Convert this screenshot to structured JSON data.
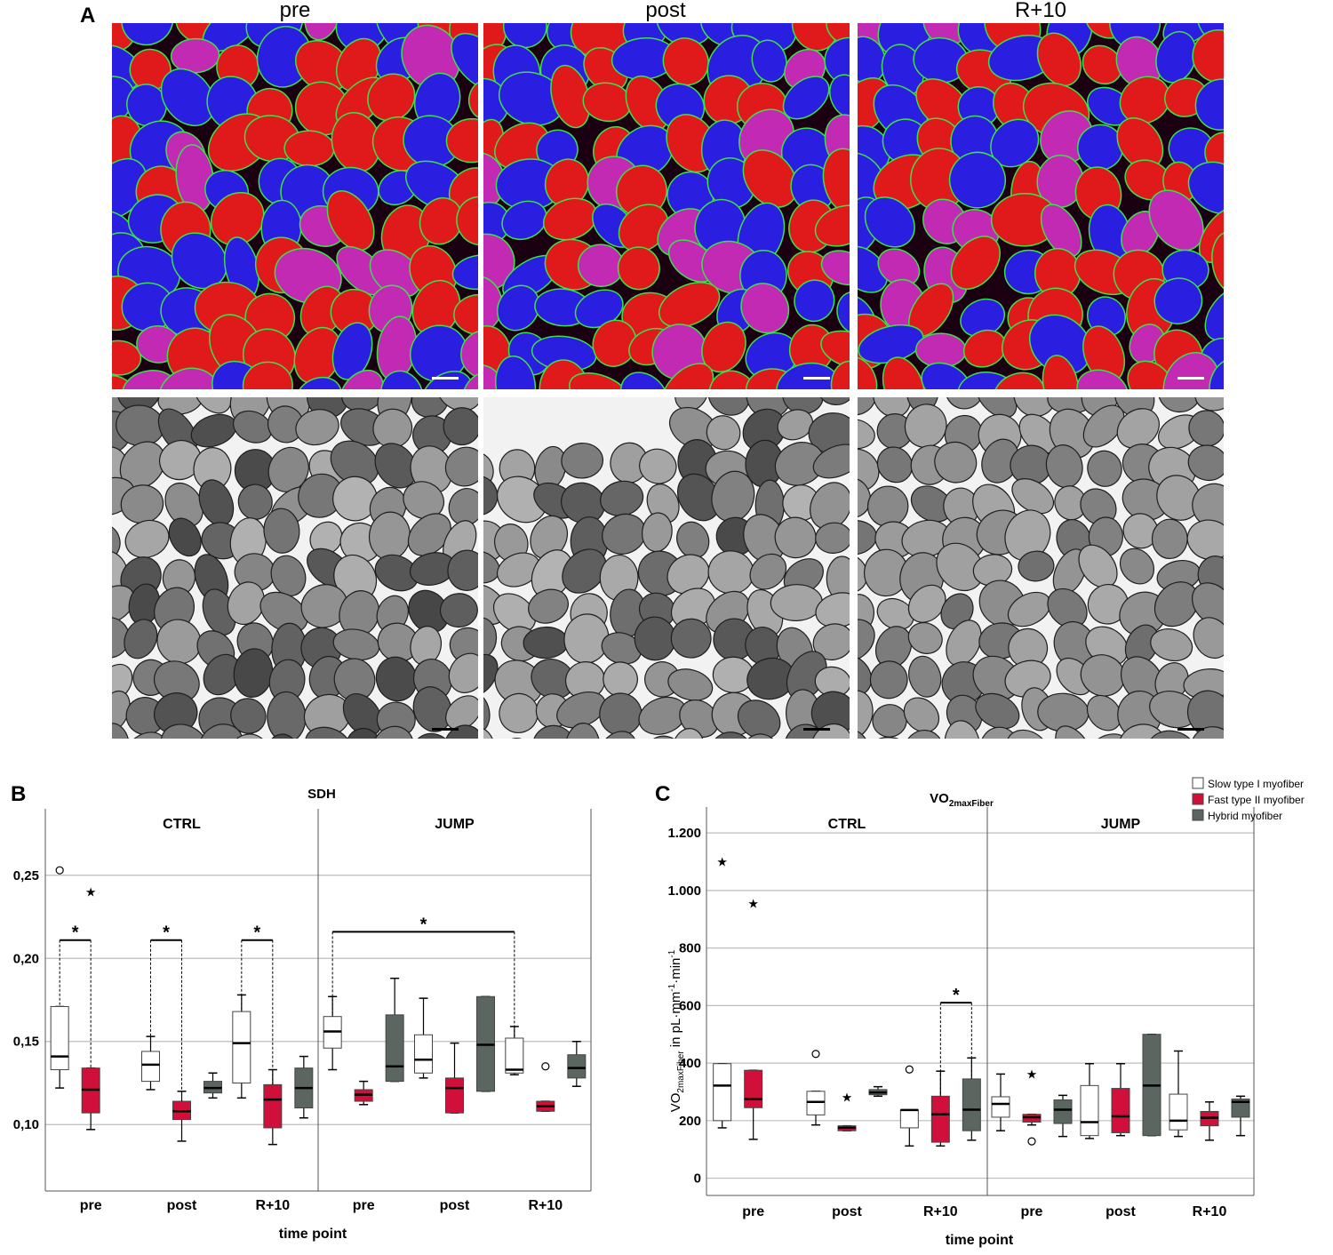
{
  "panel_labels": {
    "a": "A",
    "b": "B",
    "c": "C"
  },
  "micrograph_titles": [
    "pre",
    "post",
    "R+10"
  ],
  "micrographs": {
    "rows": [
      "immunofluorescence",
      "SDH stain"
    ],
    "fluor_colors": {
      "blue": "#2a1fe0",
      "red": "#e01a1a",
      "magenta": "#c22ab4",
      "green": "#3de04a",
      "bg": "#1a0010"
    }
  },
  "chart_data": [
    {
      "type": "box",
      "title": "SDH",
      "xlabel": "time point",
      "ylabel": "",
      "facets": [
        "CTRL",
        "JUMP"
      ],
      "categories": [
        "pre",
        "post",
        "R+10"
      ],
      "ylim": [
        0.06,
        0.29
      ],
      "yticks": [
        0.1,
        0.15,
        0.2,
        0.25
      ],
      "ytick_labels": [
        "0,10",
        "0,15",
        "0,20",
        "0,25"
      ],
      "grid": true,
      "series": [
        {
          "color": "#ffffff",
          "boxes": {
            "CTRL": [
              {
                "min": 0.122,
                "q1": 0.133,
                "median": 0.141,
                "q3": 0.171,
                "max": 0.171,
                "outliers": [
                  {
                    "v": 0.253,
                    "s": "circle"
                  }
                ]
              },
              {
                "min": 0.121,
                "q1": 0.126,
                "median": 0.136,
                "q3": 0.144,
                "max": 0.153,
                "outliers": []
              },
              {
                "min": 0.116,
                "q1": 0.125,
                "median": 0.149,
                "q3": 0.168,
                "max": 0.178,
                "outliers": []
              }
            ],
            "JUMP": [
              {
                "min": 0.133,
                "q1": 0.146,
                "median": 0.156,
                "q3": 0.165,
                "max": 0.177,
                "outliers": []
              },
              {
                "min": 0.128,
                "q1": 0.131,
                "median": 0.139,
                "q3": 0.154,
                "max": 0.176,
                "outliers": []
              },
              {
                "min": 0.13,
                "q1": 0.131,
                "median": 0.133,
                "q3": 0.152,
                "max": 0.159,
                "outliers": []
              }
            ]
          }
        },
        {
          "color": "#d0103a",
          "boxes": {
            "CTRL": [
              {
                "min": 0.097,
                "q1": 0.107,
                "median": 0.121,
                "q3": 0.134,
                "max": 0.134,
                "outliers": [
                  {
                    "v": 0.24,
                    "s": "star"
                  }
                ]
              },
              {
                "min": 0.09,
                "q1": 0.103,
                "median": 0.108,
                "q3": 0.114,
                "max": 0.12,
                "outliers": []
              },
              {
                "min": 0.088,
                "q1": 0.098,
                "median": 0.115,
                "q3": 0.124,
                "max": 0.133,
                "outliers": []
              }
            ],
            "JUMP": [
              {
                "min": 0.112,
                "q1": 0.114,
                "median": 0.118,
                "q3": 0.121,
                "max": 0.126,
                "outliers": []
              },
              {
                "min": 0.107,
                "q1": 0.107,
                "median": 0.122,
                "q3": 0.128,
                "max": 0.149,
                "outliers": []
              },
              {
                "min": 0.108,
                "q1": 0.108,
                "median": 0.111,
                "q3": 0.114,
                "max": 0.114,
                "outliers": [
                  {
                    "v": 0.135,
                    "s": "circle"
                  }
                ]
              }
            ]
          }
        },
        {
          "color": "#5b6660",
          "boxes": {
            "CTRL": [
              null,
              {
                "min": 0.116,
                "q1": 0.119,
                "median": 0.122,
                "q3": 0.126,
                "max": 0.131,
                "outliers": []
              },
              {
                "min": 0.104,
                "q1": 0.11,
                "median": 0.122,
                "q3": 0.134,
                "max": 0.141,
                "outliers": []
              }
            ],
            "JUMP": [
              {
                "min": 0.126,
                "q1": 0.126,
                "median": 0.135,
                "q3": 0.166,
                "max": 0.188,
                "outliers": []
              },
              {
                "min": 0.12,
                "q1": 0.12,
                "median": 0.148,
                "q3": 0.177,
                "max": 0.177,
                "outliers": []
              },
              {
                "min": 0.123,
                "q1": 0.128,
                "median": 0.134,
                "q3": 0.142,
                "max": 0.15,
                "outliers": []
              }
            ]
          }
        }
      ],
      "significance": [
        {
          "facet": "CTRL",
          "from": [
            0,
            0
          ],
          "to": [
            0,
            1
          ],
          "y": 0.211,
          "label": "*"
        },
        {
          "facet": "CTRL",
          "from": [
            1,
            0
          ],
          "to": [
            1,
            1
          ],
          "y": 0.211,
          "label": "*"
        },
        {
          "facet": "CTRL",
          "from": [
            2,
            0
          ],
          "to": [
            2,
            1
          ],
          "y": 0.211,
          "label": "*"
        },
        {
          "facet": "JUMP",
          "from": [
            0,
            0
          ],
          "to": [
            2,
            0
          ],
          "y": 0.216,
          "label": "*"
        }
      ]
    },
    {
      "type": "box",
      "title": "VO",
      "title_sub": "2maxFiber",
      "xlabel": "time point",
      "ylabel_parts": [
        "VO",
        "2maxFiber",
        " in pL·mm",
        "-1",
        "·min",
        "-1"
      ],
      "facets": [
        "CTRL",
        "JUMP"
      ],
      "categories": [
        "pre",
        "post",
        "R+10"
      ],
      "ylim": [
        -60,
        1290
      ],
      "yticks": [
        0,
        200,
        400,
        600,
        800,
        1000,
        1200
      ],
      "ytick_labels": [
        "0",
        "200",
        "400",
        "600",
        "800",
        "1.000",
        "1.200"
      ],
      "grid": true,
      "legend": {
        "position": "top-right",
        "entries": [
          "Slow type I myofiber",
          "Fast type II myofiber",
          "Hybrid myofiber"
        ]
      },
      "series": [
        {
          "color": "#ffffff",
          "boxes": {
            "CTRL": [
              {
                "min": 175,
                "q1": 200,
                "median": 322,
                "q3": 398,
                "max": 398,
                "outliers": [
                  {
                    "v": 1100,
                    "s": "star"
                  }
                ]
              },
              {
                "min": 185,
                "q1": 220,
                "median": 265,
                "q3": 302,
                "max": 302,
                "outliers": [
                  {
                    "v": 432,
                    "s": "circle"
                  }
                ]
              },
              {
                "min": 112,
                "q1": 175,
                "median": 237,
                "q3": 237,
                "max": 237,
                "outliers": [
                  {
                    "v": 378,
                    "s": "circle"
                  }
                ]
              }
            ],
            "JUMP": [
              {
                "min": 165,
                "q1": 212,
                "median": 258,
                "q3": 283,
                "max": 362,
                "outliers": []
              },
              {
                "min": 138,
                "q1": 148,
                "median": 195,
                "q3": 322,
                "max": 398,
                "outliers": []
              },
              {
                "min": 145,
                "q1": 168,
                "median": 200,
                "q3": 292,
                "max": 442,
                "outliers": []
              }
            ]
          }
        },
        {
          "color": "#d0103a",
          "boxes": {
            "CTRL": [
              {
                "min": 135,
                "q1": 245,
                "median": 275,
                "q3": 375,
                "max": 375,
                "outliers": [
                  {
                    "v": 955,
                    "s": "star"
                  }
                ]
              },
              {
                "min": 165,
                "q1": 165,
                "median": 175,
                "q3": 182,
                "max": 182,
                "outliers": [
                  {
                    "v": 282,
                    "s": "star"
                  }
                ]
              },
              {
                "min": 112,
                "q1": 125,
                "median": 222,
                "q3": 285,
                "max": 372,
                "outliers": []
              }
            ],
            "JUMP": [
              {
                "min": 185,
                "q1": 195,
                "median": 212,
                "q3": 222,
                "max": 222,
                "outliers": [
                  {
                    "v": 128,
                    "s": "circle"
                  },
                  {
                    "v": 362,
                    "s": "star"
                  }
                ]
              },
              {
                "min": 148,
                "q1": 158,
                "median": 215,
                "q3": 312,
                "max": 398,
                "outliers": []
              },
              {
                "min": 132,
                "q1": 182,
                "median": 210,
                "q3": 232,
                "max": 265,
                "outliers": []
              }
            ]
          }
        },
        {
          "color": "#5b6660",
          "boxes": {
            "CTRL": [
              null,
              {
                "min": 285,
                "q1": 290,
                "median": 298,
                "q3": 308,
                "max": 318,
                "outliers": []
              },
              {
                "min": 132,
                "q1": 165,
                "median": 238,
                "q3": 345,
                "max": 418,
                "outliers": []
              }
            ],
            "JUMP": [
              {
                "min": 145,
                "q1": 190,
                "median": 238,
                "q3": 272,
                "max": 288,
                "outliers": []
              },
              {
                "min": 148,
                "q1": 148,
                "median": 322,
                "q3": 500,
                "max": 500,
                "outliers": []
              },
              {
                "min": 148,
                "q1": 212,
                "median": 265,
                "q3": 275,
                "max": 285,
                "outliers": []
              }
            ]
          }
        }
      ],
      "significance": [
        {
          "facet": "CTRL",
          "from": [
            2,
            1
          ],
          "to": [
            2,
            2
          ],
          "y": 610,
          "label": "*"
        }
      ]
    }
  ]
}
